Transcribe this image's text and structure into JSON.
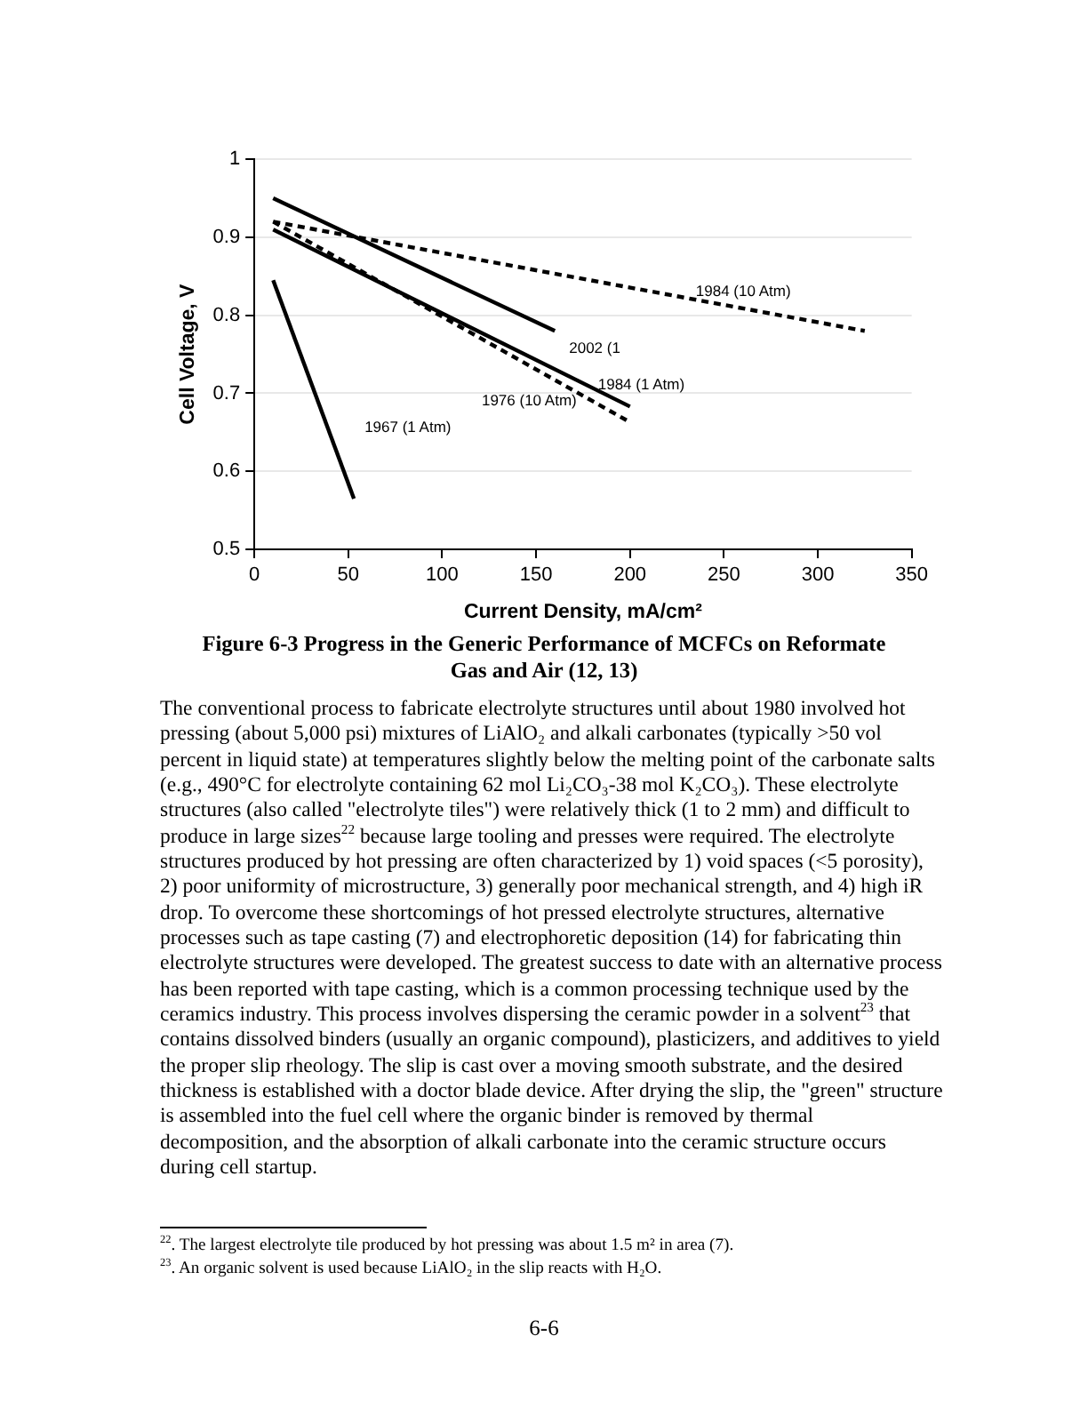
{
  "chart_data": {
    "type": "line",
    "title": "Figure 6-3  Progress in the Generic Performance of MCFCs on Reformate Gas and Air (12, 13)",
    "xlabel": "Current Density, mA/cm²",
    "ylabel": "Cell Voltage, V",
    "xlim": [
      0,
      350
    ],
    "xticks": [
      0,
      50,
      100,
      150,
      200,
      250,
      300,
      350
    ],
    "ylim": [
      0.5,
      1
    ],
    "yticks": [
      0.5,
      0.6,
      0.7,
      0.8,
      0.9,
      {
        "value": 1,
        "label": "1"
      }
    ],
    "grid": "y",
    "marker": "none",
    "legend": false,
    "series": [
      {
        "name": "1967 (1 Atm)",
        "color": "#000000",
        "line_style": "solid",
        "x": [
          10,
          53
        ],
        "values": [
          0.845,
          0.565
        ]
      },
      {
        "name": "2002 (1",
        "color": "#000000",
        "line_style": "solid",
        "x": [
          10,
          160
        ],
        "values": [
          0.95,
          0.78
        ]
      },
      {
        "name": "1984 (1 Atm)",
        "color": "#000000",
        "line_style": "solid",
        "x": [
          10,
          200
        ],
        "values": [
          0.91,
          0.683
        ]
      },
      {
        "name": "1976 (10 Atm)",
        "color": "#000000",
        "line_style": "dashed",
        "x": [
          10,
          200
        ],
        "values": [
          0.92,
          0.663
        ]
      },
      {
        "name": "1984 (10 Atm)",
        "color": "#000000",
        "line_style": "dashed",
        "x": [
          10,
          325
        ],
        "values": [
          0.92,
          0.78
        ]
      }
    ],
    "annotations": [
      "The conventional process to fabricate electrolyte structures until about 1980 involved hot pressing (about 5,000 psi) mixtures of LiAlO₂ and alkali carbonates (typically >50 vol percent in liquid state) at temperatures slightly below the melting point of the carbonate salts (e.g., 490°C for electrolyte containing 62 mol  Li₂CO₃-38 mol  K₂CO₃).  These electrolyte structures (also called \"electrolyte tiles\") were relatively thick (1 to 2 mm) and difficult to produce in large sizes$^{22}$ because large tooling and presses were required.  The electrolyte structures produced by hot pressing are often characterized by 1) void spaces (<5  porosity), 2) poor uniformity of microstructure, 3) generally poor mechanical strength, and 4) high iR drop.  To overcome these shortcomings of hot pressed electrolyte structures, alternative processes such as tape casting (7) and electrophoretic deposition (14) for fabricating thin electrolyte structures were developed.  The greatest success to date with an alternative process has been reported with tape casting, which is a common processing technique used by the ceramics industry.  This process involves dispersing the ceramic powder in a solvent$^{23}$ that contains dissolved binders (usually an organic compound), plasticizers, and additives to yield the proper slip rheology.  The slip is cast over a moving smooth substrate, and the desired thickness is established with a doctor blade device.  After drying the slip, the \"green\" structure is assembled into the fuel cell where the organic binder is removed by thermal decomposition, and the absorption of alkali carbonate into the ceramic structure occurs during cell startup.",
      "$^{22}$.   The largest electrolyte tile produced by hot pressing was about 1.5 m² in area (7).",
      "$^{23}$.   An organic solvent is used because LiAlO₂ in the slip reacts with H₂O.",
      "6-6"
    ]
  }
}
